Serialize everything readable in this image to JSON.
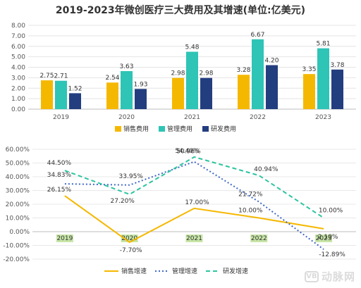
{
  "title": "2019-2023年微创医疗三大费用及其增速(单位:亿美元)",
  "watermark": {
    "text": "动脉网",
    "logo": "VB"
  },
  "chart_data": [
    {
      "type": "bar",
      "categories": [
        "2019",
        "2020",
        "2021",
        "2022",
        "2023"
      ],
      "ylim": [
        0,
        8
      ],
      "yticks": [
        "0.00",
        "1.00",
        "2.00",
        "3.00",
        "4.00",
        "5.00",
        "6.00",
        "7.00",
        "8.00"
      ],
      "grid": true,
      "legend_position": "bottom",
      "series": [
        {
          "name": "销售费用",
          "color": "#f5b800",
          "values": [
            2.75,
            2.54,
            2.98,
            3.28,
            3.35
          ],
          "labels": [
            "2.75",
            "2.54",
            "2.98",
            "3.28",
            "3.35"
          ]
        },
        {
          "name": "管理费用",
          "color": "#2ec4b6",
          "values": [
            2.71,
            3.63,
            5.48,
            6.67,
            5.81
          ],
          "labels": [
            "2.71",
            "3.63",
            "5.48",
            "6.67",
            "5.81"
          ]
        },
        {
          "name": "研发费用",
          "color": "#233e7f",
          "values": [
            1.52,
            1.93,
            2.98,
            4.2,
            3.78
          ],
          "labels": [
            "1.52",
            "1.93",
            "2.98",
            "4.20",
            "3.78"
          ]
        }
      ]
    },
    {
      "type": "line",
      "categories": [
        "2019",
        "2020",
        "2021",
        "2022",
        "2023"
      ],
      "ylim": [
        -20,
        60
      ],
      "yticks": [
        "-20.00%",
        "-10.00%",
        "0.00%",
        "10.00%",
        "20.00%",
        "30.00%",
        "40.00%",
        "50.00%",
        "60.00%"
      ],
      "grid": true,
      "legend_position": "bottom",
      "series": [
        {
          "name": "销售增速",
          "color": "#f5b800",
          "dash": "solid",
          "values": [
            26.15,
            -7.7,
            17.0,
            10.0,
            2.1
          ],
          "labels": [
            "26.15%",
            "-7.70%",
            "17.00%",
            "10.00%",
            "2.10%"
          ]
        },
        {
          "name": "管理增速",
          "color": "#4169c8",
          "dash": "dotted",
          "values": [
            34.83,
            33.95,
            50.96,
            21.72,
            -12.89
          ],
          "labels": [
            "34.83%",
            "33.95%",
            "50.96%",
            "21.72%",
            "-12.89%"
          ]
        },
        {
          "name": "研发增速",
          "color": "#2ec4a0",
          "dash": "dashed",
          "values": [
            44.5,
            27.2,
            54.4,
            40.94,
            10.0
          ],
          "labels": [
            "44.50%",
            "27.20%",
            "54.40%",
            "40.94%",
            "10.00%"
          ]
        }
      ]
    }
  ]
}
